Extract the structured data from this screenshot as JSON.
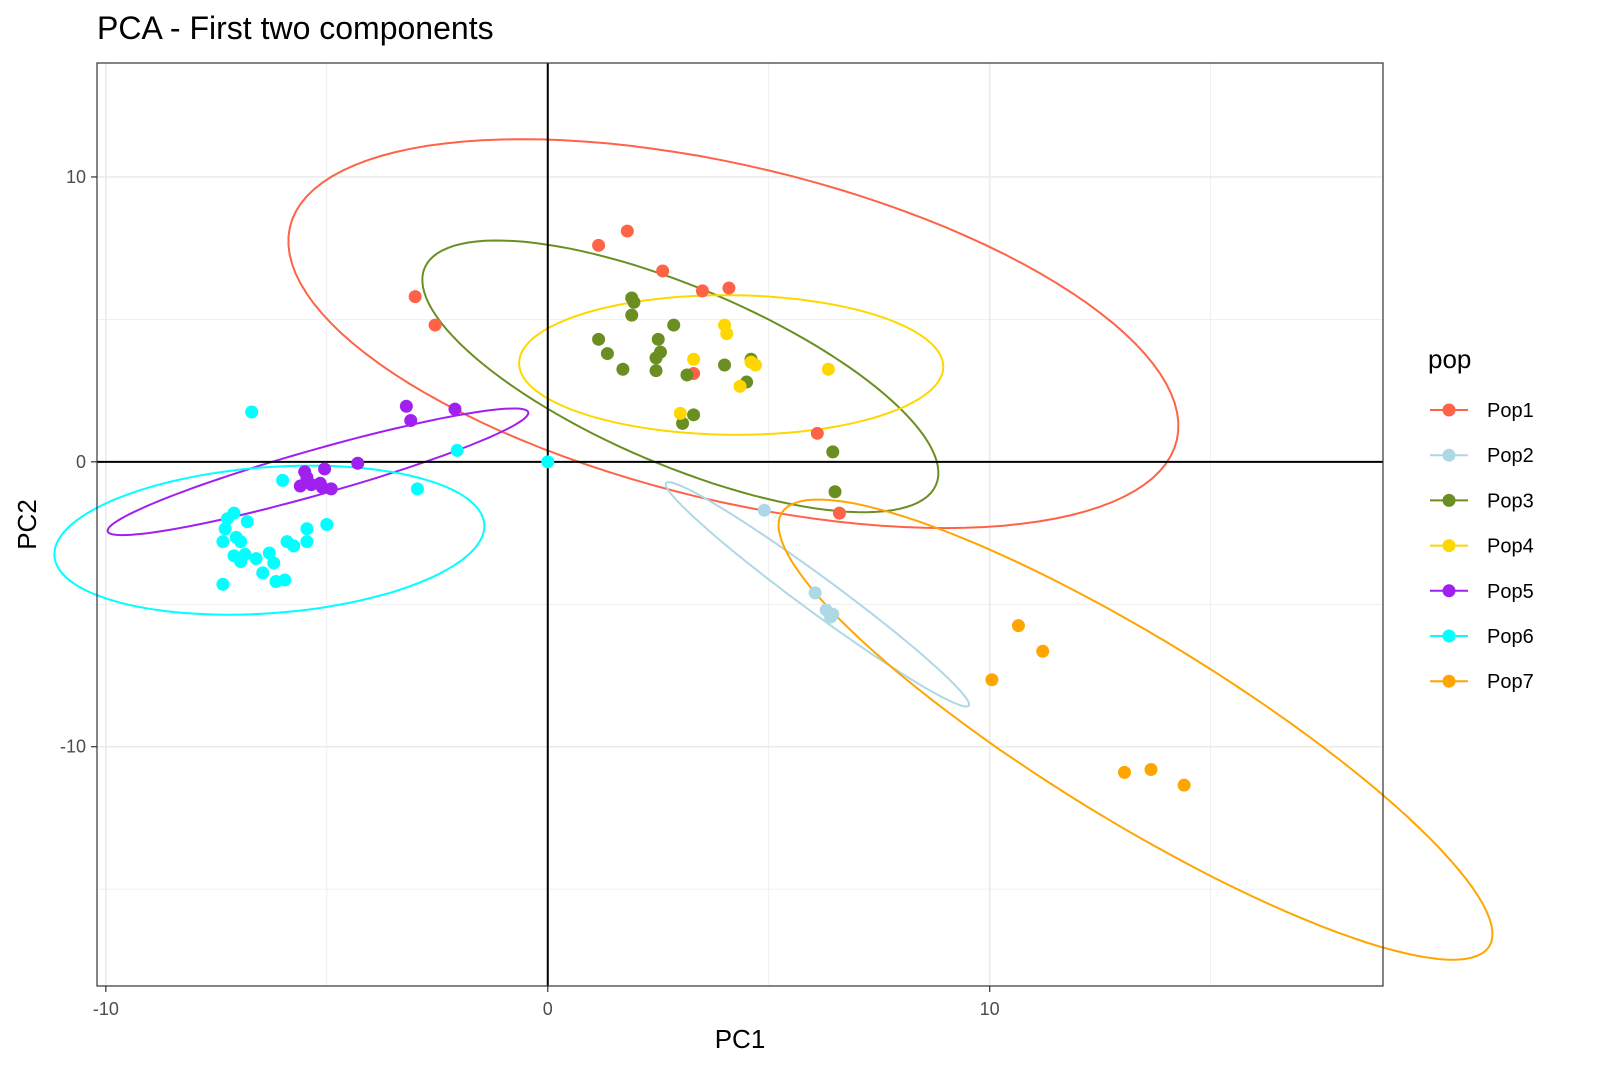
{
  "chart_data": {
    "type": "scatter",
    "title": "PCA - First two components",
    "xlabel": "PC1",
    "ylabel": "PC2",
    "xlim": [
      -10.2,
      18.9
    ],
    "ylim": [
      -18.4,
      14.0
    ],
    "x_ticks": [
      -10,
      0,
      10
    ],
    "y_ticks": [
      -10,
      0,
      10
    ],
    "x_tick_labels": [
      "-10",
      "0",
      "10"
    ],
    "y_tick_labels": [
      "-10",
      "0",
      "10"
    ],
    "grid": true,
    "reference_lines": {
      "x": 0,
      "y": 0
    },
    "legend": {
      "title": "pop",
      "position": "right"
    },
    "series": [
      {
        "name": "Pop1",
        "color": "#FF6347",
        "ellipse": {
          "cx": 4.2,
          "cy": 4.5,
          "rx": 10.8,
          "ry": 5.6,
          "angle": -25
        },
        "points": [
          [
            -3.0,
            5.8
          ],
          [
            -2.55,
            4.8
          ],
          [
            1.15,
            7.6
          ],
          [
            1.8,
            8.1
          ],
          [
            2.6,
            6.7
          ],
          [
            3.5,
            6.0
          ],
          [
            4.1,
            6.1
          ],
          [
            3.3,
            3.1
          ],
          [
            6.1,
            1.0
          ],
          [
            6.6,
            -1.8
          ]
        ]
      },
      {
        "name": "Pop2",
        "color": "#ADD8E6",
        "ellipse": {
          "cx": 6.1,
          "cy": -4.65,
          "rx": 5.2,
          "ry": 0.5,
          "angle": -49
        },
        "points": [
          [
            4.9,
            -1.7
          ],
          [
            6.05,
            -4.6
          ],
          [
            6.3,
            -5.2
          ],
          [
            6.4,
            -5.45
          ],
          [
            6.45,
            -5.35
          ]
        ]
      },
      {
        "name": "Pop3",
        "color": "#6B8E23",
        "ellipse": {
          "cx": 3.0,
          "cy": 3.0,
          "rx": 7.0,
          "ry": 2.8,
          "angle": -37
        },
        "points": [
          [
            1.9,
            5.75
          ],
          [
            1.95,
            5.6
          ],
          [
            1.9,
            5.15
          ],
          [
            2.85,
            4.8
          ],
          [
            1.15,
            4.3
          ],
          [
            2.5,
            4.3
          ],
          [
            1.35,
            3.8
          ],
          [
            2.55,
            3.85
          ],
          [
            2.45,
            3.65
          ],
          [
            4.0,
            3.4
          ],
          [
            4.6,
            3.6
          ],
          [
            1.7,
            3.25
          ],
          [
            2.45,
            3.2
          ],
          [
            3.15,
            3.05
          ],
          [
            4.5,
            2.8
          ],
          [
            3.3,
            1.65
          ],
          [
            3.05,
            1.35
          ],
          [
            6.45,
            0.35
          ],
          [
            6.5,
            -1.05
          ]
        ]
      },
      {
        "name": "Pop4",
        "color": "#FFD700",
        "ellipse": {
          "cx": 4.15,
          "cy": 3.4,
          "rx": 4.8,
          "ry": 2.45,
          "angle": -1
        },
        "points": [
          [
            4.0,
            4.8
          ],
          [
            4.05,
            4.5
          ],
          [
            3.3,
            3.6
          ],
          [
            4.6,
            3.5
          ],
          [
            4.7,
            3.4
          ],
          [
            6.35,
            3.25
          ],
          [
            4.35,
            2.65
          ],
          [
            3.0,
            1.7
          ]
        ]
      },
      {
        "name": "Pop5",
        "color": "#A020F0",
        "ellipse": {
          "cx": -5.2,
          "cy": -0.35,
          "rx": 5.2,
          "ry": 0.75,
          "angle": 24
        },
        "points": [
          [
            -3.2,
            1.95
          ],
          [
            -2.1,
            1.85
          ],
          [
            -3.1,
            1.45
          ],
          [
            -4.3,
            -0.05
          ],
          [
            -5.05,
            -0.25
          ],
          [
            -5.5,
            -0.35
          ],
          [
            -5.6,
            -0.85
          ],
          [
            -5.35,
            -0.8
          ],
          [
            -5.15,
            -0.75
          ],
          [
            -5.1,
            -0.9
          ],
          [
            -5.45,
            -0.55
          ],
          [
            -4.9,
            -0.95
          ]
        ]
      },
      {
        "name": "Pop6",
        "color": "#00FFFF",
        "ellipse": {
          "cx": -6.3,
          "cy": -2.75,
          "rx": 4.9,
          "ry": 2.55,
          "angle": 8
        },
        "points": [
          [
            -6.7,
            1.75
          ],
          [
            -2.05,
            0.4
          ],
          [
            0.0,
            0.0
          ],
          [
            -6.0,
            -0.65
          ],
          [
            -2.95,
            -0.95
          ],
          [
            -7.1,
            -1.8
          ],
          [
            -7.25,
            -2.0
          ],
          [
            -6.8,
            -2.1
          ],
          [
            -7.3,
            -2.35
          ],
          [
            -7.05,
            -2.65
          ],
          [
            -6.95,
            -2.8
          ],
          [
            -7.35,
            -2.8
          ],
          [
            -5.9,
            -2.8
          ],
          [
            -5.75,
            -2.95
          ],
          [
            -5.45,
            -2.8
          ],
          [
            -5.45,
            -2.35
          ],
          [
            -5.0,
            -2.2
          ],
          [
            -6.3,
            -3.2
          ],
          [
            -6.85,
            -3.25
          ],
          [
            -7.1,
            -3.3
          ],
          [
            -6.6,
            -3.4
          ],
          [
            -6.95,
            -3.5
          ],
          [
            -6.2,
            -3.55
          ],
          [
            -6.45,
            -3.9
          ],
          [
            -6.15,
            -4.2
          ],
          [
            -5.95,
            -4.15
          ],
          [
            -7.35,
            -4.3
          ]
        ]
      },
      {
        "name": "Pop7",
        "color": "#FFA500",
        "ellipse": {
          "cx": 13.3,
          "cy": -9.4,
          "rx": 11.1,
          "ry": 2.7,
          "angle": -45
        },
        "points": [
          [
            10.65,
            -5.75
          ],
          [
            11.2,
            -6.65
          ],
          [
            10.05,
            -7.65
          ],
          [
            13.05,
            -10.9
          ],
          [
            13.65,
            -10.8
          ],
          [
            14.4,
            -11.35
          ]
        ]
      }
    ]
  }
}
